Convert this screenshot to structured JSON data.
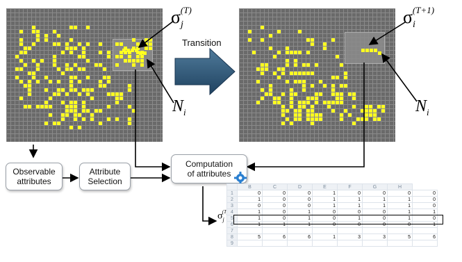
{
  "labels": {
    "sigma_j_base": "σ",
    "sigma_j_sub": "j",
    "sigma_j_sup": "(T)",
    "sigma_i_base": "σ",
    "sigma_i_sub": "i",
    "sigma_i_sup": "(T+1)",
    "ni_base": "N",
    "ni_sub": "i",
    "transition": "Transition"
  },
  "boxes": {
    "observable": "Observable\nattributes",
    "attr_selection": "Attribute\nSelection",
    "computation": "Computation\nof attributes"
  },
  "spreadsheet": {
    "columns": [
      "",
      "B",
      "C",
      "D",
      "E",
      "F",
      "G",
      "H"
    ],
    "rows": [
      {
        "n": "1",
        "cells": [
          "0",
          "0",
          "0",
          "1",
          "0",
          "0",
          "0",
          "0"
        ]
      },
      {
        "n": "2",
        "cells": [
          "1",
          "0",
          "0",
          "1",
          "1",
          "1",
          "1",
          "0"
        ]
      },
      {
        "n": "3",
        "cells": [
          "0",
          "0",
          "0",
          "1",
          "1",
          "1",
          "1",
          "0"
        ]
      },
      {
        "n": "4",
        "cells": [
          "1",
          "0",
          "1",
          "0",
          "0",
          "0",
          "1",
          "1"
        ]
      },
      {
        "n": "5",
        "cells": [
          "1",
          "0",
          "1",
          "0",
          "1",
          "0",
          "1",
          "0"
        ]
      },
      {
        "n": "6",
        "cells": [
          "1",
          "1",
          "1",
          "0",
          "0",
          "0",
          "0",
          "1"
        ]
      },
      {
        "n": "7",
        "cells": [
          "",
          "",
          "",
          "",
          "",
          "",
          "",
          ""
        ]
      },
      {
        "n": "8",
        "cells": [
          "5",
          "6",
          "6",
          "1",
          "3",
          "3",
          "5",
          "6"
        ]
      },
      {
        "n": "9",
        "cells": [
          "",
          "",
          "",
          "",
          "",
          "",
          "",
          ""
        ]
      }
    ]
  },
  "colors": {
    "grid_bg": "#6a6a6a",
    "cell_on": "#ffff20",
    "arrow_fill": "#2f5a7a"
  }
}
